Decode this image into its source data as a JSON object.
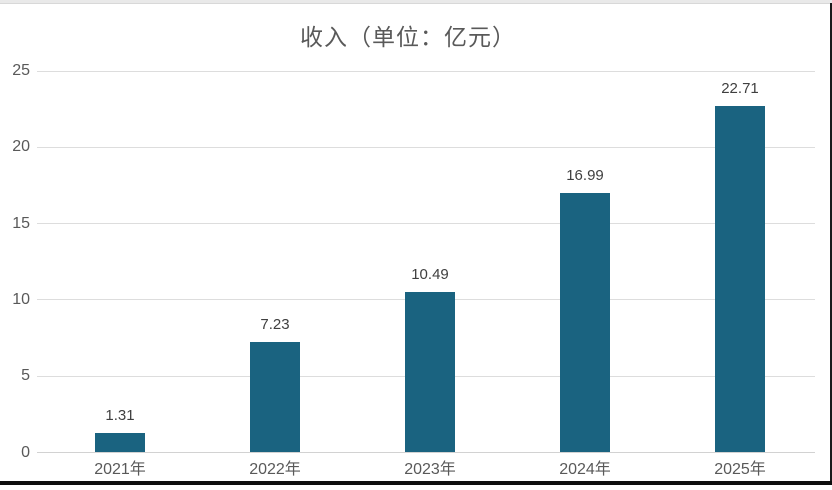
{
  "chart_data": {
    "type": "bar",
    "title": "收入（单位：亿元）",
    "categories": [
      "2021年",
      "2022年",
      "2023年",
      "2024年",
      "2025年"
    ],
    "values": [
      1.31,
      7.23,
      10.49,
      16.99,
      22.71
    ],
    "value_labels": [
      "1.31",
      "7.23",
      "10.49",
      "16.99",
      "22.71"
    ],
    "ylim": [
      0,
      25
    ],
    "yticks": [
      0,
      5,
      10,
      15,
      20,
      25
    ],
    "grid": true,
    "legend": "none",
    "colors": {
      "bar": "#1A6380",
      "gridline": "#DDDDDD",
      "baseline": "#D2D2D2",
      "title_text": "#595959",
      "value_label_text": "#3F3F3F",
      "axis_text": "#595959"
    }
  }
}
